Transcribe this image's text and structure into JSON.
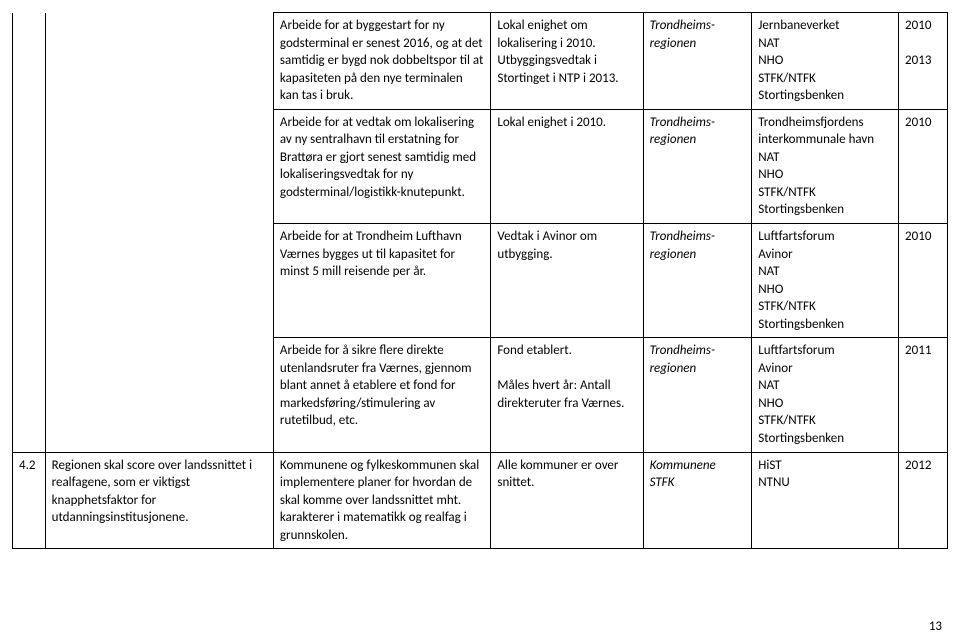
{
  "rows": [
    {
      "c1": "",
      "c2": "",
      "c3": "Arbeide for at byggestart for ny godsterminal er senest 2016, og at det samtidig er bygd nok dobbeltspor til at kapasiteten på den nye terminalen kan tas i bruk.",
      "c4": "Lokal enighet om lokalisering i 2010. Utbyggingsvedtak i Stortinget i NTP i 2013.",
      "c5": "Trondheims-regionen",
      "c6": "Jernbaneverket\nNAT\nNHO\nSTFK/NTFK\nStortingsbenken",
      "c7": "2010\n\n2013"
    },
    {
      "c1": "",
      "c2": "",
      "c3": "Arbeide for at vedtak om lokalisering av ny sentralhavn til erstatning for Brattøra er gjort senest samtidig med lokaliseringsvedtak for ny godsterminal/logistikk-knutepunkt.",
      "c4": "Lokal enighet i 2010.",
      "c5": "Trondheims-regionen",
      "c6": "Trondheimsfjordens interkommunale havn\nNAT\nNHO\nSTFK/NTFK\nStortingsbenken",
      "c7": "2010"
    },
    {
      "c1": "",
      "c2": "",
      "c3": "Arbeide for at Trondheim Lufthavn Værnes bygges ut til kapasitet for minst 5 mill reisende per år.",
      "c4": "Vedtak i Avinor om utbygging.",
      "c5": "Trondheims-regionen",
      "c6": "Luftfartsforum\nAvinor\nNAT\nNHO\nSTFK/NTFK\nStortingsbenken",
      "c7": "2010"
    },
    {
      "c1": "",
      "c2": "",
      "c3": "Arbeide for å sikre flere direkte utenlandsruter fra Værnes, gjennom blant annet å etablere et fond for markedsføring/stimulering av rutetilbud, etc.",
      "c4": "Fond etablert.\n\nMåles hvert år: Antall direkteruter fra Værnes.",
      "c5": "Trondheims-regionen",
      "c6": "Luftfartsforum\nAvinor\nNAT\nNHO\nSTFK/NTFK\nStortingsbenken",
      "c7": "2011"
    },
    {
      "c1": "4.2",
      "c2": "Regionen skal score over landssnittet i realfagene, som er viktigst knapphetsfaktor for utdanningsinstitusjonene.",
      "c3": "Kommunene og fylkeskommunen skal implementere planer for hvordan de skal komme over landssnittet mht. karakterer i matematikk og realfag i grunnskolen.",
      "c4": "Alle kommuner er over snittet.",
      "c5": "Kommunene\nSTFK",
      "c6": "HiST\nNTNU",
      "c7": "2012"
    }
  ],
  "pagenum": "13"
}
